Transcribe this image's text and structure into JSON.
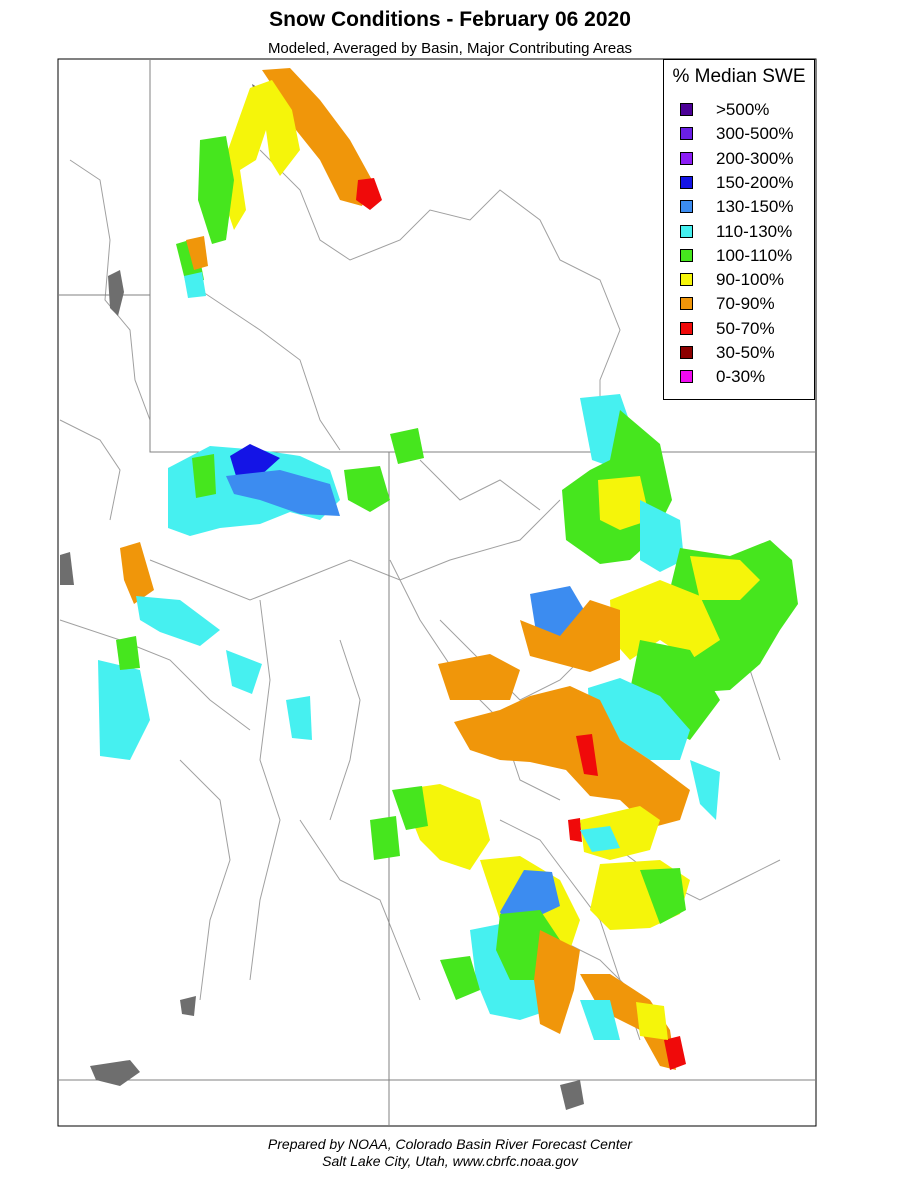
{
  "header": {
    "title": "Snow Conditions - February 06 2020",
    "subtitle": "Modeled, Averaged by Basin, Major Contributing Areas"
  },
  "legend": {
    "title": "% Median SWE",
    "items": [
      {
        "label": ">500%",
        "color": "#4b0096"
      },
      {
        "label": "300-500%",
        "color": "#6a1fe6"
      },
      {
        "label": "200-300%",
        "color": "#8c1ef5"
      },
      {
        "label": "150-200%",
        "color": "#1414e6"
      },
      {
        "label": "130-150%",
        "color": "#3c8cf0"
      },
      {
        "label": "110-130%",
        "color": "#46f0f0"
      },
      {
        "label": "100-110%",
        "color": "#46e61e"
      },
      {
        "label": "90-100%",
        "color": "#f5f50a"
      },
      {
        "label": "70-90%",
        "color": "#f0960a"
      },
      {
        "label": "50-70%",
        "color": "#f00a0a"
      },
      {
        "label": "30-50%",
        "color": "#8c0000"
      },
      {
        "label": "0-30%",
        "color": "#f00af0"
      }
    ]
  },
  "footer": {
    "line1": "Prepared by NOAA, Colorado Basin River Forecast Center",
    "line2": "Salt Lake City, Utah, www.cbrfc.noaa.gov"
  },
  "map": {
    "colors": {
      "water": "#6e6e6e",
      "border": "#000000",
      "basin": "#a0a0a0",
      "river": "#c8c8c8"
    }
  }
}
